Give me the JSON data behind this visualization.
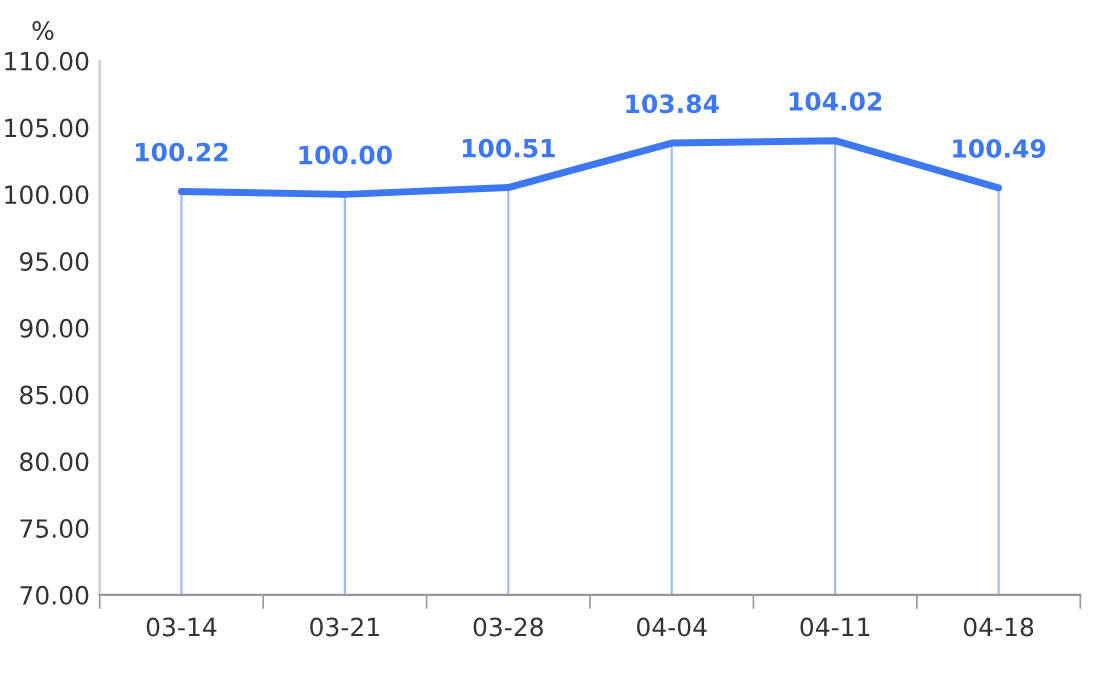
{
  "chart_data": {
    "type": "line",
    "ylabel": "%",
    "categories": [
      "03-14",
      "03-21",
      "03-28",
      "04-04",
      "04-11",
      "04-18"
    ],
    "series": [
      {
        "color": "#3d78f2",
        "values": [
          100.22,
          100.0,
          100.51,
          103.84,
          104.02,
          100.49
        ]
      }
    ],
    "value_labels": [
      "100.22",
      "100.00",
      "100.51",
      "103.84",
      "104.02",
      "100.49"
    ],
    "ylim": [
      70,
      110
    ],
    "yticks": [
      {
        "value": 70,
        "label": "70.00"
      },
      {
        "value": 75,
        "label": "75.00"
      },
      {
        "value": 80,
        "label": "80.00"
      },
      {
        "value": 85,
        "label": "85.00"
      },
      {
        "value": 90,
        "label": "90.00"
      },
      {
        "value": 95,
        "label": "95.00"
      },
      {
        "value": 100,
        "label": "100.00"
      },
      {
        "value": 105,
        "label": "105.00"
      },
      {
        "value": 110,
        "label": "110.00"
      }
    ],
    "grid": "x",
    "legend": false,
    "marker": "none",
    "line_style": "solid"
  }
}
